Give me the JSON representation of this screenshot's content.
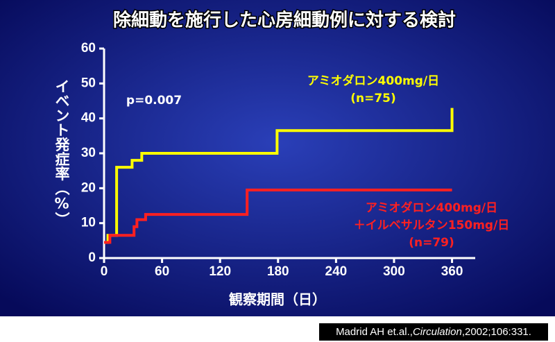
{
  "chart_data": {
    "type": "line",
    "step": true,
    "title": "除細動を施行した心房細動例に対する検討",
    "annotation": "p=0.007",
    "xlabel": "観察期間（日）",
    "ylabel": "イベント発症率（%）",
    "xlim": [
      0,
      384
    ],
    "ylim": [
      0,
      60
    ],
    "xticks": [
      0,
      60,
      120,
      180,
      240,
      300,
      360
    ],
    "yticks": [
      0,
      10,
      20,
      30,
      40,
      50,
      60
    ],
    "series": [
      {
        "name": [
          "アミオダロン400mg/日",
          "(n=75)"
        ],
        "color": "#ffff00",
        "x": [
          0,
          4,
          13,
          29,
          39,
          179,
          360
        ],
        "values": [
          4.5,
          6.5,
          26,
          28,
          30,
          36.5,
          43
        ]
      },
      {
        "name": [
          "アミオダロン400mg/日",
          "＋イルベサルタン150mg/日",
          "(n=79)"
        ],
        "color": "#ff2020",
        "x": [
          0,
          6,
          31,
          34,
          43,
          148,
          360
        ],
        "values": [
          4.5,
          6.5,
          9,
          11,
          12.5,
          19.5,
          19.5
        ]
      }
    ]
  },
  "citation": {
    "author": "Madrid AH et.al.,",
    "journal": "Circulation",
    "details": ",2002;106:331."
  }
}
